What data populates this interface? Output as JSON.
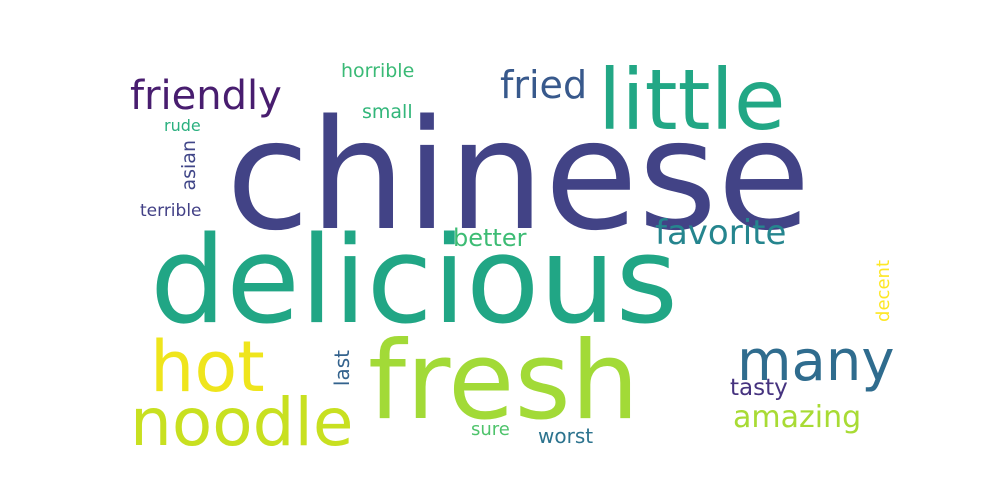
{
  "wordcloud": {
    "words": [
      {
        "text": "chinese",
        "color": "#424386"
      },
      {
        "text": "delicious",
        "color": "#21a685"
      },
      {
        "text": "fresh",
        "color": "#a2da37"
      },
      {
        "text": "little",
        "color": "#22a785"
      },
      {
        "text": "hot",
        "color": "#efe51c"
      },
      {
        "text": "noodle",
        "color": "#c8e020"
      },
      {
        "text": "many",
        "color": "#2f6c8e"
      },
      {
        "text": "friendly",
        "color": "#481d6f"
      },
      {
        "text": "fried",
        "color": "#38598c"
      },
      {
        "text": "favorite",
        "color": "#25858e"
      },
      {
        "text": "better",
        "color": "#3dbc74"
      },
      {
        "text": "horrible",
        "color": "#3aba76"
      },
      {
        "text": "small",
        "color": "#32b67a"
      },
      {
        "text": "rude",
        "color": "#2ab07f"
      },
      {
        "text": "asian",
        "color": "#404688"
      },
      {
        "text": "terrible",
        "color": "#424086"
      },
      {
        "text": "amazing",
        "color": "#a8db34"
      },
      {
        "text": "tasty",
        "color": "#46337f"
      },
      {
        "text": "last",
        "color": "#33628d"
      },
      {
        "text": "sure",
        "color": "#4ec36b"
      },
      {
        "text": "worst",
        "color": "#2c738e"
      },
      {
        "text": "decent",
        "color": "#fde725"
      }
    ]
  }
}
